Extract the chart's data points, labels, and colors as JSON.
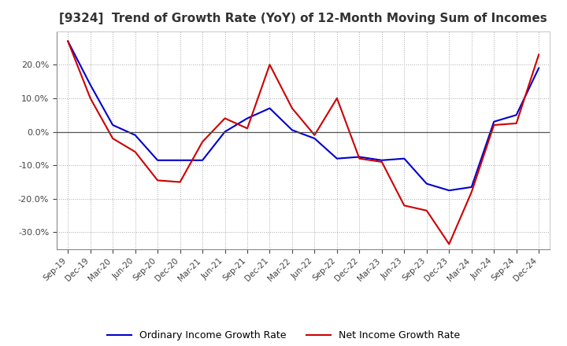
{
  "title": "[9324]  Trend of Growth Rate (YoY) of 12-Month Moving Sum of Incomes",
  "title_fontsize": 11,
  "ylim": [
    -0.35,
    0.3
  ],
  "yticks": [
    -0.3,
    -0.2,
    -0.1,
    0.0,
    0.1,
    0.2
  ],
  "background_color": "#ffffff",
  "grid_color": "#aaaaaa",
  "ordinary_color": "#0000cc",
  "net_color": "#cc0000",
  "legend_labels": [
    "Ordinary Income Growth Rate",
    "Net Income Growth Rate"
  ],
  "x_labels": [
    "Sep-19",
    "Dec-19",
    "Mar-20",
    "Jun-20",
    "Sep-20",
    "Dec-20",
    "Mar-21",
    "Jun-21",
    "Sep-21",
    "Dec-21",
    "Mar-22",
    "Jun-22",
    "Sep-22",
    "Dec-22",
    "Mar-23",
    "Jun-23",
    "Sep-23",
    "Dec-23",
    "Mar-24",
    "Jun-24",
    "Sep-24",
    "Dec-24"
  ],
  "ordinary_income": [
    0.27,
    0.14,
    0.02,
    -0.01,
    -0.085,
    -0.085,
    -0.085,
    0.0,
    0.04,
    0.07,
    0.005,
    -0.02,
    -0.08,
    -0.075,
    -0.085,
    -0.08,
    -0.155,
    -0.175,
    -0.165,
    0.03,
    0.05,
    0.19
  ],
  "net_income": [
    0.27,
    0.1,
    -0.02,
    -0.06,
    -0.145,
    -0.15,
    -0.03,
    0.04,
    0.01,
    0.2,
    0.07,
    -0.01,
    0.1,
    -0.08,
    -0.09,
    -0.22,
    -0.235,
    -0.335,
    -0.18,
    0.02,
    0.025,
    0.23
  ]
}
